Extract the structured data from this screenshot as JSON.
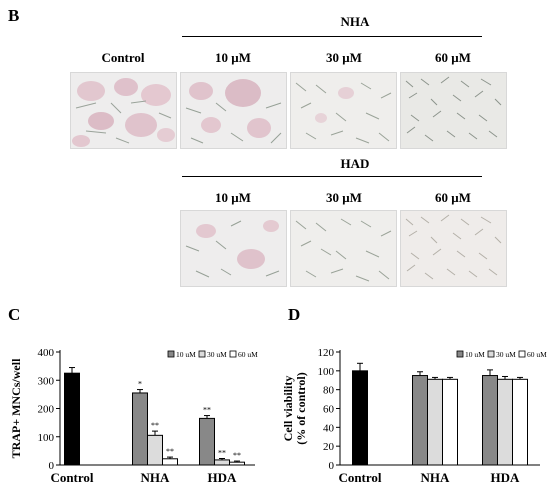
{
  "panels": {
    "b": "B",
    "c": "C",
    "d": "D"
  },
  "figure_b": {
    "groups": [
      {
        "title": "NHA",
        "conditions": [
          "10 μM",
          "30 μM",
          "60 μM"
        ]
      },
      {
        "title": "HAD",
        "conditions": [
          "10 μM",
          "30 μM",
          "60 μM"
        ]
      }
    ],
    "control_label": "Control"
  },
  "chart_data": [
    {
      "type": "bar",
      "panel": "C",
      "categories": [
        "Control",
        "NHA",
        "HDA"
      ],
      "ylabel": "TRAP+ MNCs/well",
      "xlabel": "",
      "ylim": [
        0,
        400
      ],
      "yticks": [
        0,
        100,
        200,
        300,
        400
      ],
      "legend": [
        "10 uM",
        "30 uM",
        "60 uM"
      ],
      "legend_placement": "top-right",
      "control": {
        "value": 325,
        "error": 20,
        "color": "#000000"
      },
      "series": [
        {
          "name": "10 uM",
          "color": "#888888",
          "values": [
            null,
            255,
            165
          ],
          "errors": [
            null,
            12,
            10
          ],
          "sig": [
            null,
            "*",
            "**"
          ]
        },
        {
          "name": "30 uM",
          "color": "#dcdcdc",
          "values": [
            null,
            105,
            18
          ],
          "errors": [
            null,
            15,
            5
          ],
          "sig": [
            null,
            "**",
            "**"
          ]
        },
        {
          "name": "60 uM",
          "color": "#ffffff",
          "values": [
            null,
            22,
            10
          ],
          "errors": [
            null,
            6,
            4
          ],
          "sig": [
            null,
            "**",
            "**"
          ]
        }
      ]
    },
    {
      "type": "bar",
      "panel": "D",
      "categories": [
        "Control",
        "NHA",
        "HDA"
      ],
      "ylabel": "Cell viability\n(% of control)",
      "xlabel": "",
      "ylim": [
        0,
        120
      ],
      "yticks": [
        0,
        20,
        40,
        60,
        80,
        100,
        120
      ],
      "legend": [
        "10 uM",
        "30 uM",
        "60 uM"
      ],
      "legend_placement": "top-right",
      "control": {
        "value": 100,
        "error": 8,
        "color": "#000000"
      },
      "series": [
        {
          "name": "10 uM",
          "color": "#888888",
          "values": [
            null,
            95,
            95
          ],
          "errors": [
            null,
            4,
            6
          ]
        },
        {
          "name": "30 uM",
          "color": "#dcdcdc",
          "values": [
            null,
            91,
            91
          ],
          "errors": [
            null,
            2,
            3
          ]
        },
        {
          "name": "60 uM",
          "color": "#ffffff",
          "values": [
            null,
            91,
            91
          ],
          "errors": [
            null,
            2,
            2
          ]
        }
      ]
    }
  ]
}
